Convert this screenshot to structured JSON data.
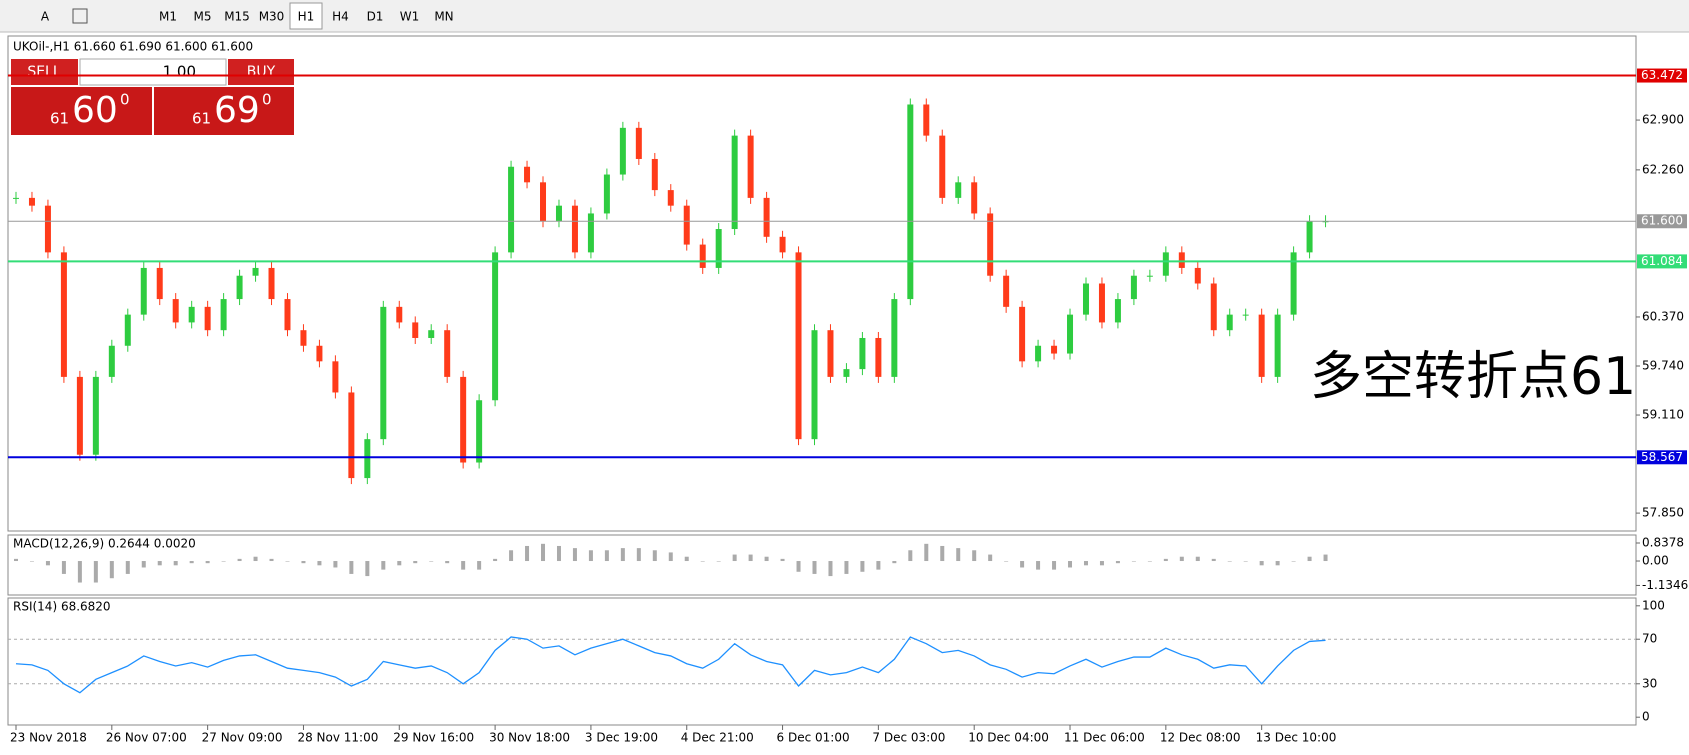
{
  "toolbar": {
    "tools": [
      "A"
    ],
    "timeframes": [
      "M1",
      "M5",
      "M15",
      "M30",
      "H1",
      "H4",
      "D1",
      "W1",
      "MN"
    ],
    "active": "H1"
  },
  "trade_panel": {
    "sell": "SELL",
    "buy": "BUY",
    "volume": "1.00",
    "sell_small": "61",
    "sell_big": "60",
    "sell_sup": "0",
    "buy_small": "61",
    "buy_big": "69",
    "buy_sup": "0"
  },
  "chart_data": [
    {
      "type": "candlestick",
      "title": "UKOil-,H1  61.660 61.690 61.600 61.600",
      "annotation": "多空转折点61",
      "categories": [
        "23 Nov 2018",
        null,
        null,
        null,
        null,
        null,
        "26 Nov 07:00",
        null,
        null,
        null,
        null,
        null,
        "27 Nov 09:00",
        null,
        null,
        null,
        null,
        null,
        "28 Nov 11:00",
        null,
        null,
        null,
        null,
        null,
        "29 Nov 16:00",
        null,
        null,
        null,
        null,
        null,
        "30 Nov 18:00",
        null,
        null,
        null,
        null,
        null,
        "3 Dec 19:00",
        null,
        null,
        null,
        null,
        null,
        "4 Dec 21:00",
        null,
        null,
        null,
        null,
        null,
        "6 Dec 01:00",
        null,
        null,
        null,
        null,
        null,
        "7 Dec 03:00",
        null,
        null,
        null,
        null,
        null,
        "10 Dec 04:00",
        null,
        null,
        null,
        null,
        null,
        "11 Dec 06:00",
        null,
        null,
        null,
        null,
        null,
        "12 Dec 08:00",
        null,
        null,
        null,
        null,
        null,
        "13 Dec 10:00",
        null,
        null,
        null,
        null
      ],
      "values": [
        61.9,
        61.8,
        61.2,
        59.6,
        58.6,
        59.6,
        60.0,
        60.4,
        61.0,
        60.6,
        60.3,
        60.5,
        60.2,
        60.6,
        60.9,
        61.0,
        60.6,
        60.2,
        60.0,
        59.8,
        59.4,
        58.3,
        58.8,
        60.5,
        60.3,
        60.1,
        60.2,
        59.6,
        58.5,
        59.3,
        61.2,
        62.3,
        62.1,
        61.6,
        61.8,
        61.2,
        61.7,
        62.2,
        62.8,
        62.4,
        62.0,
        61.8,
        61.3,
        61.0,
        61.5,
        62.7,
        61.9,
        61.4,
        61.2,
        58.8,
        60.2,
        59.6,
        59.7,
        60.1,
        59.6,
        60.6,
        63.1,
        62.7,
        61.9,
        62.1,
        61.7,
        60.9,
        60.5,
        59.8,
        60.0,
        59.9,
        60.4,
        60.8,
        60.3,
        60.6,
        60.9,
        60.9,
        61.2,
        61.0,
        60.8,
        60.2,
        60.4,
        60.4,
        59.6,
        60.4,
        61.2,
        61.6,
        61.6
      ],
      "up_color": "#2ecc40",
      "down_color": "#ff3b1a",
      "ylim": [
        57.62,
        63.98
      ],
      "yticks": [
        {
          "value": 62.9,
          "label": "62.900"
        },
        {
          "value": 62.26,
          "label": "62.260"
        },
        {
          "value": 60.37,
          "label": "60.370"
        },
        {
          "value": 59.74,
          "label": "59.740"
        },
        {
          "value": 59.11,
          "label": "59.110"
        },
        {
          "value": 57.85,
          "label": "57.850"
        }
      ],
      "hlines": [
        {
          "value": 63.472,
          "label": "63.472",
          "color": "#e00000"
        },
        {
          "value": 61.6,
          "label": "61.600",
          "color": "#999999"
        },
        {
          "value": 61.084,
          "label": "61.084",
          "color": "#33dd77"
        },
        {
          "value": 58.567,
          "label": "58.567",
          "color": "#0000dd"
        }
      ]
    },
    {
      "type": "bar",
      "title": "MACD(12,26,9) 0.2644 0.0020",
      "color": "#aaaaaa",
      "values": [
        0.1,
        0.0,
        -0.2,
        -0.6,
        -1.0,
        -1.0,
        -0.8,
        -0.6,
        -0.3,
        -0.2,
        -0.2,
        -0.1,
        -0.1,
        0.0,
        0.1,
        0.2,
        0.1,
        0.0,
        -0.1,
        -0.2,
        -0.3,
        -0.6,
        -0.7,
        -0.4,
        -0.2,
        -0.1,
        0.0,
        -0.1,
        -0.4,
        -0.4,
        0.1,
        0.5,
        0.7,
        0.8,
        0.7,
        0.6,
        0.5,
        0.5,
        0.6,
        0.6,
        0.5,
        0.4,
        0.2,
        0.0,
        0.0,
        0.3,
        0.3,
        0.2,
        0.1,
        -0.5,
        -0.6,
        -0.7,
        -0.6,
        -0.5,
        -0.4,
        -0.1,
        0.5,
        0.8,
        0.7,
        0.6,
        0.5,
        0.3,
        0.0,
        -0.3,
        -0.4,
        -0.4,
        -0.3,
        -0.2,
        -0.2,
        -0.1,
        0.0,
        0.0,
        0.1,
        0.2,
        0.2,
        0.1,
        0.0,
        0.0,
        -0.2,
        -0.2,
        0.0,
        0.2,
        0.3
      ],
      "ylim": [
        -1.58,
        1.21
      ],
      "yticks": [
        0.8378,
        {
          "value": 0,
          "label": "0.00"
        },
        -1.1346
      ]
    },
    {
      "type": "line",
      "title": "RSI(14) 68.6820",
      "color": "#1e90ff",
      "values": [
        48,
        47,
        42,
        30,
        22,
        34,
        40,
        46,
        55,
        50,
        46,
        49,
        45,
        51,
        55,
        56,
        50,
        44,
        42,
        40,
        36,
        28,
        34,
        50,
        47,
        44,
        46,
        40,
        30,
        40,
        60,
        72,
        70,
        62,
        64,
        56,
        62,
        66,
        70,
        64,
        58,
        55,
        48,
        44,
        52,
        66,
        56,
        50,
        47,
        28,
        42,
        38,
        40,
        45,
        40,
        52,
        72,
        66,
        58,
        60,
        55,
        47,
        43,
        36,
        40,
        39,
        46,
        52,
        45,
        50,
        54,
        54,
        62,
        56,
        52,
        44,
        47,
        46,
        30,
        46,
        60,
        68,
        69
      ],
      "ylim": [
        -7,
        107
      ],
      "yticks": [
        100,
        70,
        30,
        0
      ],
      "levels": [
        70,
        30
      ]
    }
  ]
}
